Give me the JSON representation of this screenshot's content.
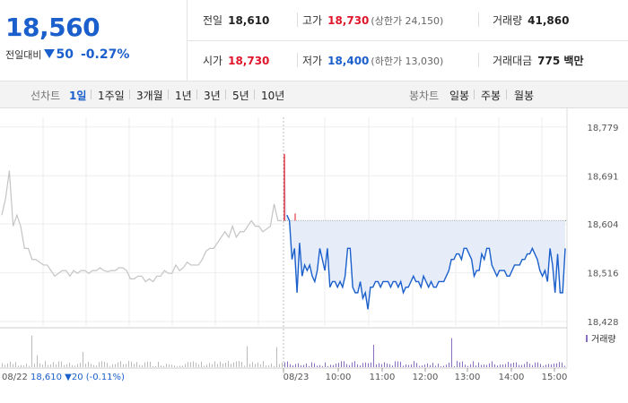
{
  "summary": {
    "current_price": "18,560",
    "change_label": "전일대비",
    "change_amount": "50",
    "change_percent": "-0.27%"
  },
  "stats": {
    "prev_close": {
      "label": "전일",
      "value": "18,610"
    },
    "high": {
      "label": "고가",
      "value": "18,730",
      "sub": "(상한가 24,150)"
    },
    "volume": {
      "label": "거래량",
      "value": "41,860"
    },
    "open": {
      "label": "시가",
      "value": "18,730"
    },
    "low": {
      "label": "저가",
      "value": "18,400",
      "sub": "(하한가 13,030)"
    },
    "trade_value": {
      "label": "거래대금",
      "value": "775 백만"
    }
  },
  "line_chart_tabs": {
    "label": "선차트",
    "items": [
      "1일",
      "1주일",
      "3개월",
      "1년",
      "3년",
      "5년",
      "10년"
    ],
    "active": "1일"
  },
  "candle_chart_tabs": {
    "label": "봉차트",
    "items": [
      "일봉",
      "주봉",
      "월봉"
    ]
  },
  "chart_data": {
    "type": "line",
    "y_ticks": [
      "18,779",
      "18,691",
      "18,604",
      "18,516",
      "18,428"
    ],
    "ylim": [
      18420,
      18790
    ],
    "x_ticks": [
      "08/23",
      "10:00",
      "11:00",
      "12:00",
      "13:00",
      "14:00",
      "15:00"
    ],
    "prev_day_label": "08/22",
    "prev_day_summary": "18,610 ▼20 (-0.11%)",
    "reference_line": 18610,
    "volume_legend": "거래량",
    "series": [
      {
        "values_prev_day": [
          18620,
          18650,
          18700,
          18600,
          18620,
          18600,
          18560,
          18560,
          18540,
          18540,
          18535,
          18530,
          18530,
          18520,
          18510,
          18515,
          18520,
          18520,
          18510,
          18520,
          18515,
          18520,
          18520,
          18515,
          18520,
          18520,
          18525,
          18520,
          18518,
          18520,
          18520,
          18525,
          18525,
          18520,
          18505,
          18505,
          18510,
          18510,
          18500,
          18505,
          18500,
          18510,
          18510,
          18520,
          18515,
          18515,
          18530,
          18520,
          18525,
          18535,
          18530,
          18530,
          18530,
          18540,
          18555,
          18560,
          18560,
          18570,
          18580,
          18590,
          18580,
          18600,
          18580,
          18590,
          18590,
          18600,
          18610,
          18600,
          18600,
          18590,
          18595,
          18600,
          18640,
          18610,
          18610
        ],
        "values_today": [
          18730,
          18620,
          18610,
          18540,
          18560,
          18480,
          18570,
          18510,
          18530,
          18520,
          18530,
          18510,
          18500,
          18520,
          18560,
          18540,
          18520,
          18560,
          18490,
          18500,
          18500,
          18490,
          18500,
          18490,
          18510,
          18560,
          18560,
          18490,
          18480,
          18480,
          18500,
          18470,
          18480,
          18450,
          18490,
          18490,
          18500,
          18500,
          18490,
          18500,
          18500,
          18500,
          18490,
          18500,
          18500,
          18490,
          18500,
          18480,
          18490,
          18490,
          18500,
          18510,
          18500,
          18500,
          18490,
          18510,
          18500,
          18490,
          18500,
          18490,
          18490,
          18500,
          18500,
          18500,
          18510,
          18520,
          18540,
          18540,
          18550,
          18550,
          18540,
          18560,
          18560,
          18550,
          18540,
          18510,
          18520,
          18520,
          18550,
          18540,
          18560,
          18560,
          18530,
          18520,
          18510,
          18520,
          18520,
          18520,
          18510,
          18510,
          18520,
          18530,
          18530,
          18530,
          18540,
          18540,
          18550,
          18550,
          18560,
          18550,
          18540,
          18520,
          18510,
          18520,
          18500,
          18560,
          18530,
          18480,
          18550,
          18480,
          18480,
          18560
        ]
      }
    ]
  },
  "colors": {
    "blue": "#1a5fcb",
    "red": "#e0162b",
    "fill": "#e6edf9",
    "prev_line": "#c4c4c4",
    "volume_bar": "#8a6fc0"
  }
}
